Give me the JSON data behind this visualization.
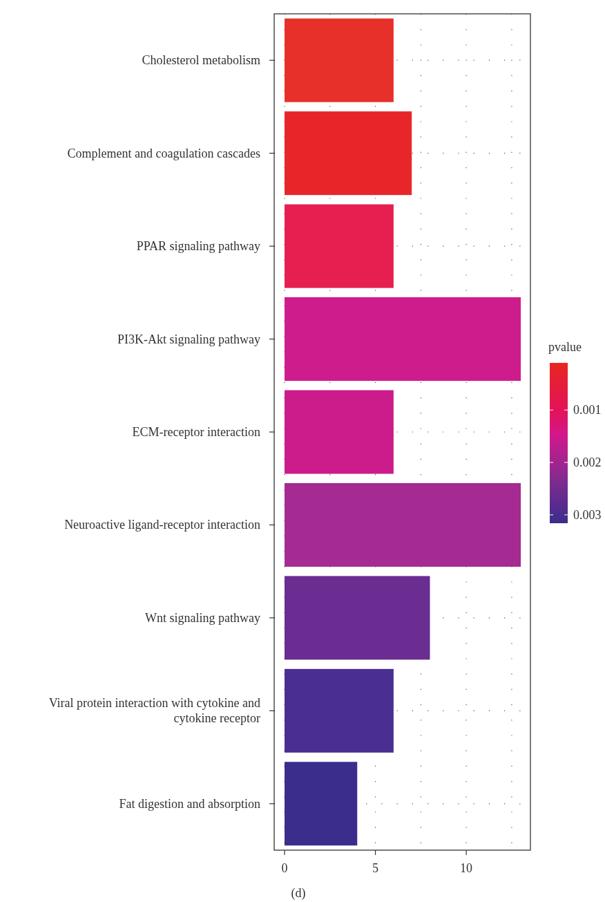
{
  "chart_data": {
    "type": "bar",
    "orientation": "horizontal",
    "categories": [
      "Cholesterol metabolism",
      "Complement and coagulation cascades",
      "PPAR signaling pathway",
      "PI3K-Akt signaling pathway",
      "ECM-receptor interaction",
      "Neuroactive ligand-receptor interaction",
      "Wnt signaling pathway",
      "Viral protein interaction with cytokine and cytokine receptor",
      "Fat digestion and absorption"
    ],
    "values": [
      6,
      7,
      6,
      13,
      6,
      13,
      8,
      6,
      4
    ],
    "colors": [
      "#e8302a",
      "#e8262a",
      "#e61f50",
      "#cf1c8c",
      "#cc1c8c",
      "#a52a92",
      "#6a2d91",
      "#4a2e91",
      "#3a2d8c"
    ],
    "xlim": [
      -0.57,
      13.53
    ],
    "xticks": [
      0,
      {
        "value": 2.5,
        "label": null
      },
      5,
      {
        "value": 7.5,
        "label": null
      },
      10,
      {
        "value": 12.5,
        "label": null
      }
    ],
    "grid": true,
    "clabel": "pvalue",
    "clim": [
      0.0001,
      0.00316
    ],
    "cticks": [
      0.001,
      0.002,
      0.003
    ],
    "annotations": [
      "(d)"
    ]
  }
}
